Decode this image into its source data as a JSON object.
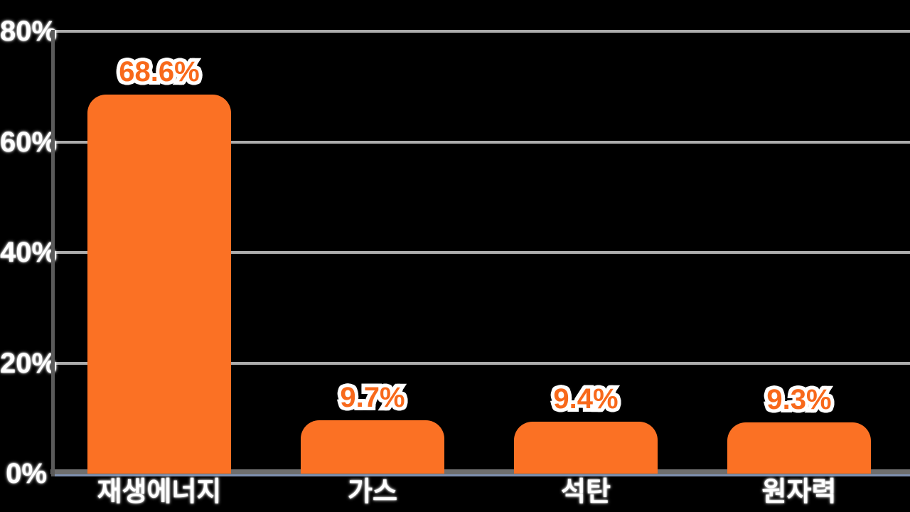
{
  "chart_data": {
    "type": "bar",
    "title": "",
    "xlabel": "",
    "ylabel": "",
    "categories": [
      "재생에너지",
      "가스",
      "석탄",
      "원자력"
    ],
    "values": [
      68.6,
      9.7,
      9.4,
      9.3
    ],
    "value_labels": [
      "68.6%",
      "9.7%",
      "9.4%",
      "9.3%"
    ],
    "ylim": [
      0,
      80
    ],
    "yticks": [
      {
        "value": 80,
        "label": "80%"
      },
      {
        "value": 60,
        "label": "60%"
      },
      {
        "value": 40,
        "label": "40%"
      },
      {
        "value": 20,
        "label": "20%"
      },
      {
        "value": 0,
        "label": "0%"
      }
    ],
    "grid": true,
    "legend_position": "none",
    "colors": {
      "background": "#000000",
      "bar": "#FB7124",
      "value_label": "#F8691B",
      "tick_text": "#FFFFFF",
      "gridline": "#ACACAC",
      "axis_y": "#5A5A5A",
      "axis_x": "#6E6E6E",
      "baseline_accent": "#7E90B0"
    }
  }
}
